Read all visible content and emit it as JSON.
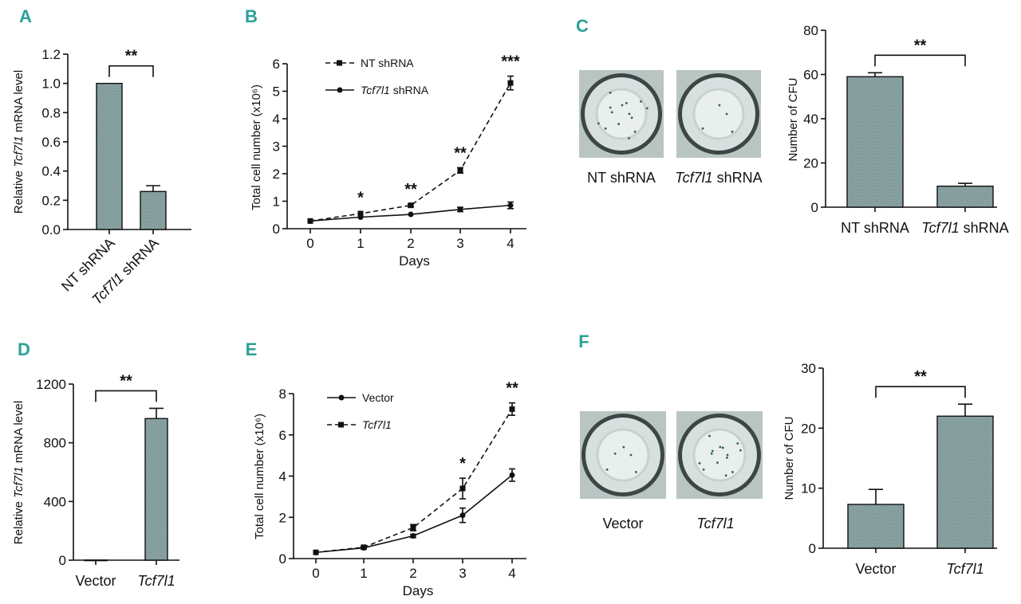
{
  "colors": {
    "panel_letter": "#2aa198",
    "bar_fill": "#8ea6a6",
    "ink": "#111111",
    "dish_bg": "#d7e0de"
  },
  "chart_data": [
    {
      "panel": "A",
      "type": "bar",
      "ylabel_pre": "Relative ",
      "ylabel_italic": "Tcf7l1",
      "ylabel_post": " mRNA level",
      "ylim": [
        0,
        1.2
      ],
      "yticks": [
        "0.0",
        "0.2",
        "0.4",
        "0.6",
        "0.8",
        "1.0",
        "1.2"
      ],
      "yticks_values": [
        0,
        0.2,
        0.4,
        0.6,
        0.8,
        1.0,
        1.2
      ],
      "categories": [
        {
          "pre": "NT shRNA",
          "italic": "",
          "post": ""
        },
        {
          "pre": "",
          "italic": "Tcf7l1",
          "post": " shRNA"
        }
      ],
      "values": [
        1.0,
        0.26
      ],
      "errors": [
        0,
        0.04
      ],
      "significance": "**"
    },
    {
      "panel": "B",
      "type": "line",
      "xlabel": "Days",
      "ylabel": "Total cell number (x10⁶)",
      "x": [
        0,
        1,
        2,
        3,
        4
      ],
      "xticks": [
        "0",
        "1",
        "2",
        "3",
        "4"
      ],
      "ylim": [
        0,
        6
      ],
      "yticks": [
        "0",
        "1",
        "2",
        "3",
        "4",
        "5",
        "6"
      ],
      "yticks_values": [
        0,
        1,
        2,
        3,
        4,
        5,
        6
      ],
      "series": [
        {
          "name_pre": "NT shRNA",
          "name_italic": "",
          "name_post": "",
          "dashed": true,
          "marker": "square",
          "values": [
            0.28,
            0.55,
            0.85,
            2.12,
            5.3
          ],
          "errors": [
            0.02,
            0.04,
            0.05,
            0.1,
            0.25
          ]
        },
        {
          "name_pre": "",
          "name_italic": "Tcf7l1",
          "name_post": " shRNA",
          "dashed": false,
          "marker": "circle",
          "values": [
            0.28,
            0.42,
            0.52,
            0.7,
            0.85
          ],
          "errors": [
            0.02,
            0.03,
            0.04,
            0.08,
            0.12
          ]
        }
      ],
      "annotations": [
        {
          "x": 1,
          "text": "*"
        },
        {
          "x": 2,
          "text": "**"
        },
        {
          "x": 3,
          "text": "**"
        },
        {
          "x": 4,
          "text": "***"
        }
      ]
    },
    {
      "panel": "C",
      "type": "bar",
      "ylabel": "Number of CFU",
      "ylim": [
        0,
        80
      ],
      "yticks": [
        "0",
        "20",
        "40",
        "60",
        "80"
      ],
      "yticks_values": [
        0,
        20,
        40,
        60,
        80
      ],
      "categories": [
        {
          "pre": "NT shRNA",
          "italic": "",
          "post": ""
        },
        {
          "pre": "",
          "italic": "Tcf7l1",
          "post": " shRNA"
        }
      ],
      "values": [
        59,
        9.5
      ],
      "errors": [
        1.8,
        1.3
      ],
      "significance": "**",
      "photo_labels": [
        {
          "pre": "NT shRNA",
          "italic": "",
          "post": ""
        },
        {
          "pre": "",
          "italic": "Tcf7l1",
          "post": " shRNA"
        }
      ]
    },
    {
      "panel": "D",
      "type": "bar",
      "ylabel_pre": "Relative ",
      "ylabel_italic": "Tcf7l1",
      "ylabel_post": " mRNA level",
      "ylim": [
        0,
        1200
      ],
      "yticks": [
        "0",
        "400",
        "800",
        "1200"
      ],
      "yticks_values": [
        0,
        400,
        800,
        1200
      ],
      "categories": [
        {
          "pre": "Vector",
          "italic": "",
          "post": ""
        },
        {
          "pre": "",
          "italic": "Tcf7l1",
          "post": ""
        }
      ],
      "values": [
        1,
        965
      ],
      "errors": [
        0,
        70
      ],
      "significance": "**"
    },
    {
      "panel": "E",
      "type": "line",
      "xlabel": "Days",
      "ylabel": "Total cell number (x10⁶)",
      "x": [
        0,
        1,
        2,
        3,
        4
      ],
      "xticks": [
        "0",
        "1",
        "2",
        "3",
        "4"
      ],
      "ylim": [
        0,
        8
      ],
      "yticks": [
        "0",
        "2",
        "4",
        "6",
        "8"
      ],
      "yticks_values": [
        0,
        2,
        4,
        6,
        8
      ],
      "series": [
        {
          "name_pre": "Vector",
          "name_italic": "",
          "name_post": "",
          "dashed": false,
          "marker": "circle",
          "values": [
            0.3,
            0.52,
            1.1,
            2.1,
            4.05
          ],
          "errors": [
            0.03,
            0.05,
            0.08,
            0.35,
            0.3
          ]
        },
        {
          "name_pre": "",
          "name_italic": "Tcf7l1",
          "name_post": "",
          "dashed": true,
          "marker": "square",
          "values": [
            0.3,
            0.55,
            1.5,
            3.4,
            7.25
          ],
          "errors": [
            0.03,
            0.05,
            0.15,
            0.5,
            0.3
          ]
        }
      ],
      "annotations": [
        {
          "x": 3,
          "text": "*"
        },
        {
          "x": 4,
          "text": "**"
        }
      ]
    },
    {
      "panel": "F",
      "type": "bar",
      "ylabel": "Number of CFU",
      "ylim": [
        0,
        30
      ],
      "yticks": [
        "0",
        "10",
        "20",
        "30"
      ],
      "yticks_values": [
        0,
        10,
        20,
        30
      ],
      "categories": [
        {
          "pre": "Vector",
          "italic": "",
          "post": ""
        },
        {
          "pre": "",
          "italic": "Tcf7l1",
          "post": ""
        }
      ],
      "values": [
        7.3,
        22
      ],
      "errors": [
        2.5,
        2
      ],
      "significance": "**",
      "photo_labels": [
        {
          "pre": "Vector",
          "italic": "",
          "post": ""
        },
        {
          "pre": "",
          "italic": "Tcf7l1",
          "post": ""
        }
      ]
    }
  ]
}
